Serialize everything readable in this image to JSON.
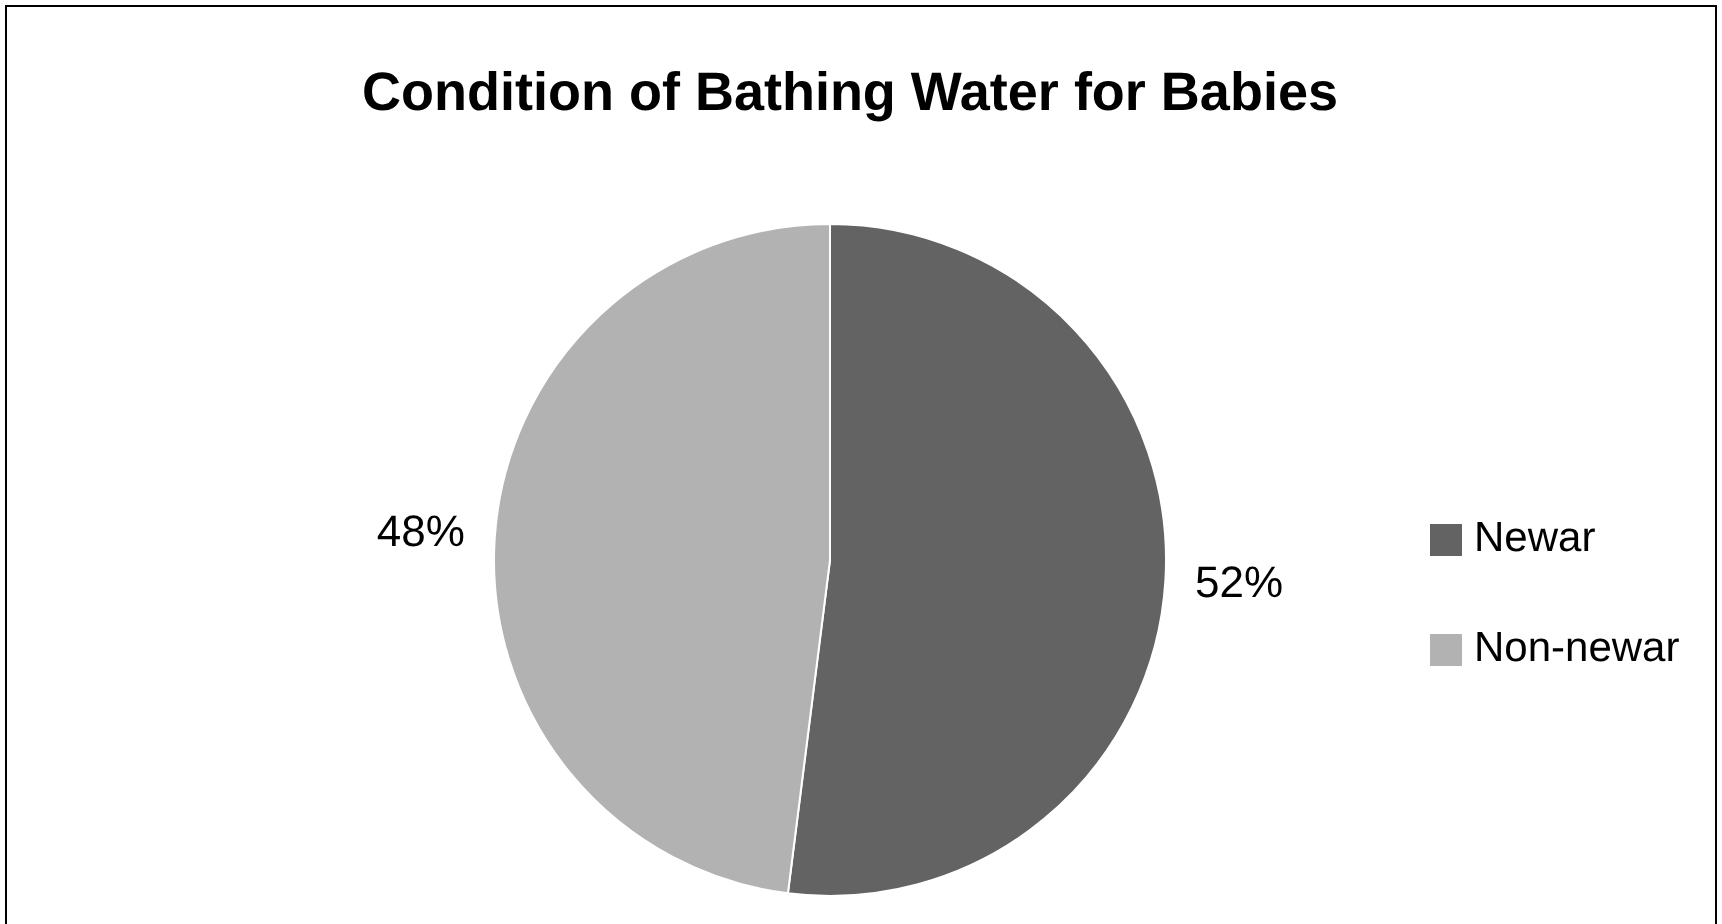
{
  "chart_data": {
    "type": "pie",
    "title": "Condition of Bathing Water for Babies",
    "categories": [
      "Newar",
      "Non-newar"
    ],
    "values": [
      52,
      48
    ],
    "colors": [
      "#636363",
      "#b2b2b2"
    ],
    "value_labels": [
      "52%",
      "48%"
    ],
    "legend": "right"
  }
}
